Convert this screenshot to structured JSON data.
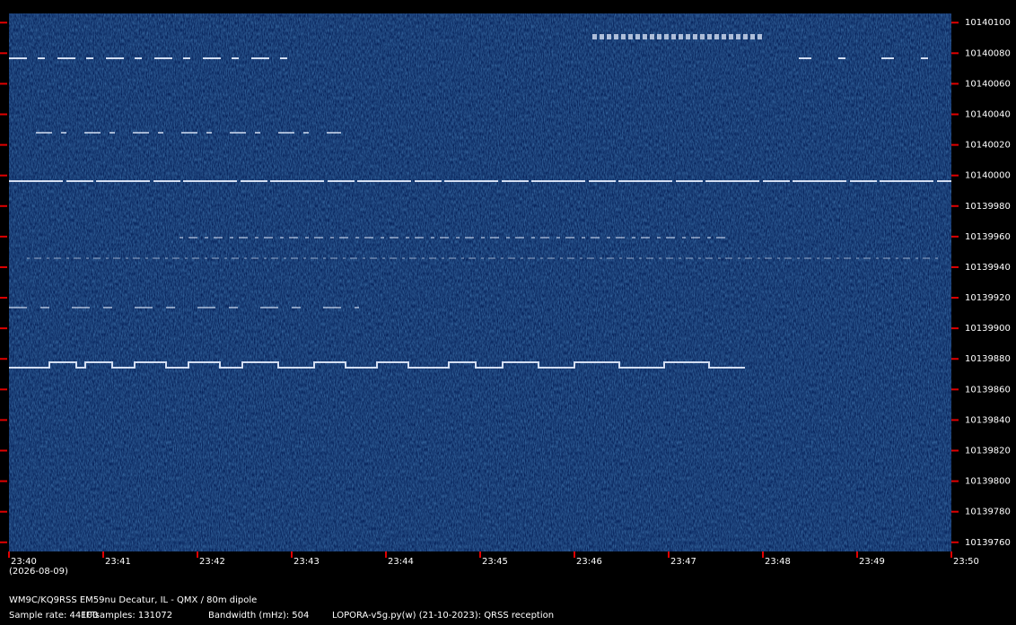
{
  "chart_data": {
    "type": "spectrogram",
    "ylim": [
      10139754,
      10140106
    ],
    "yticks": [
      10140100,
      10140080,
      10140060,
      10140040,
      10140020,
      10140000,
      10139980,
      10139960,
      10139940,
      10139920,
      10139900,
      10139880,
      10139860,
      10139840,
      10139820,
      10139800,
      10139780,
      10139760
    ],
    "categories": [
      "23:40",
      "23:41",
      "23:42",
      "23:43",
      "23:44",
      "23:45",
      "23:46",
      "23:47",
      "23:48",
      "23:49",
      "23:50"
    ],
    "date": "(2026-08-09)",
    "station": "WM9C/KQ9RSS EM59nu Decatur, IL - QMX / 80m dipole",
    "info": [
      "Sample rate: 44100",
      "FFTsamples: 131072",
      "Bandwidth (mHz): 504",
      "LOPORA-v5g.py(w) (21-10-2023): QRSS reception"
    ]
  }
}
